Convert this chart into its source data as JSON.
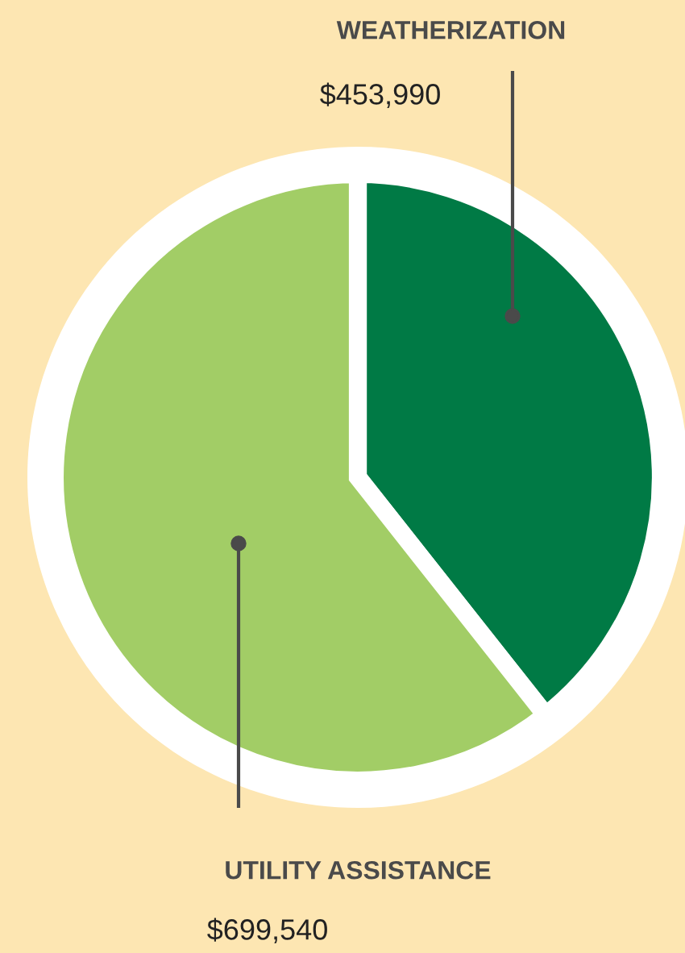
{
  "chart_data": {
    "type": "pie",
    "categories": [
      "WEATHERIZATION",
      "UTILITY ASSISTANCE"
    ],
    "values": [
      453990,
      699540
    ],
    "value_labels": [
      "$453,990",
      "$699,540"
    ],
    "colors": [
      "#007a45",
      "#a2cd66"
    ]
  }
}
